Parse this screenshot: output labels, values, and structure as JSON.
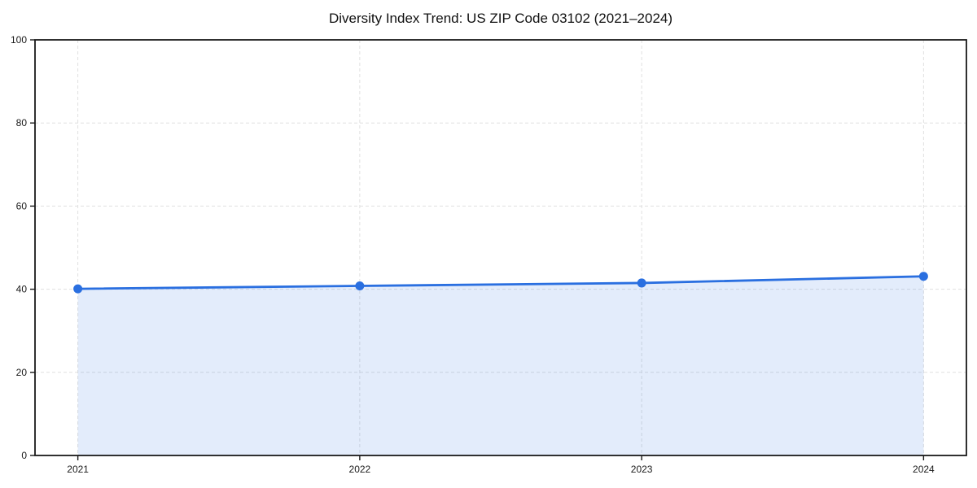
{
  "chart_data": {
    "type": "area",
    "title": "Diversity Index Trend: US ZIP Code 03102 (2021–2024)",
    "xlabel": "",
    "ylabel": "",
    "x": [
      2021,
      2022,
      2023,
      2024
    ],
    "series": [
      {
        "name": "Diversity Index",
        "values": [
          40.1,
          40.8,
          41.5,
          43.1
        ]
      }
    ],
    "ylim": [
      0,
      100
    ],
    "yticks": [
      0,
      20,
      40,
      60,
      80,
      100
    ],
    "grid": true,
    "legend": "none",
    "line_color": "#2a6fe0",
    "marker_color": "#2a6fe0",
    "fill_color": "rgba(42, 111, 224, 0.13)",
    "grid_color": "#e0e0e0",
    "axis_color": "#1a1a1a",
    "tick_label_color": "#1a1a1a"
  }
}
